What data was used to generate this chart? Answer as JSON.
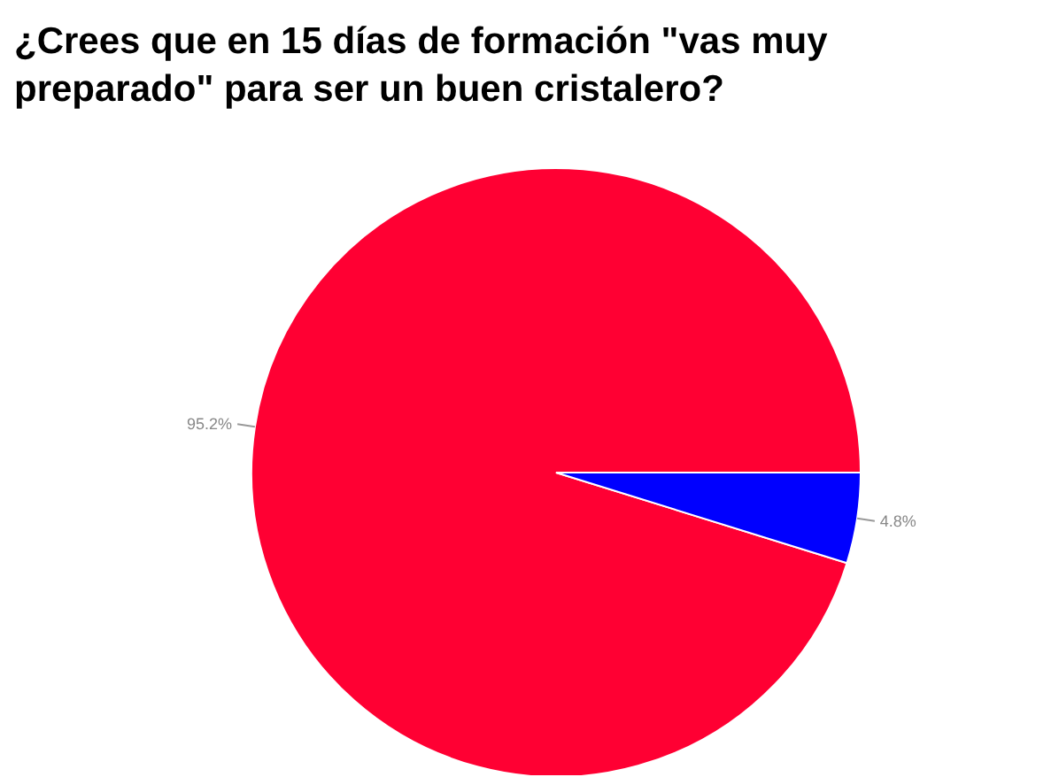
{
  "chart_data": {
    "type": "pie",
    "title": "¿Crees que en 15 días de formación \"vas muy preparado\" para ser un buen cristalero?",
    "categories": [
      null,
      null
    ],
    "values": [
      95.2,
      4.8
    ],
    "colors": [
      "#ff0033",
      "#0000ff"
    ],
    "value_labels": [
      "95.2%",
      "4.8%"
    ]
  }
}
